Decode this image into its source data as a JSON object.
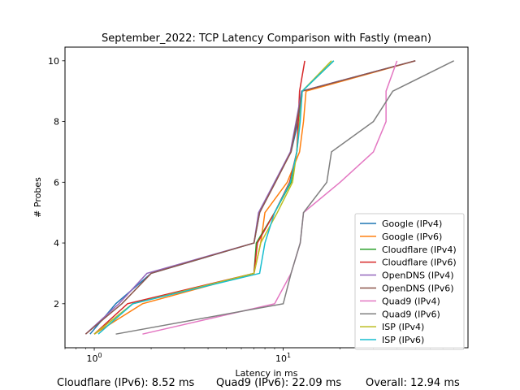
{
  "chart_data": {
    "type": "line",
    "title": "September_2022: TCP Latency Comparison with Fastly (mean)",
    "xlabel": "Latency in ms",
    "ylabel": "# Probes",
    "xscale": "log",
    "xlim": [
      0.7,
      95
    ],
    "ylim": [
      0.55,
      10.45
    ],
    "xticks": [
      {
        "value": 1,
        "label": "10^0"
      },
      {
        "value": 10,
        "label": "10^1"
      }
    ],
    "yticks": [
      2,
      4,
      6,
      8,
      10
    ],
    "legend_position": "lower-right",
    "series": [
      {
        "name": "Google (IPv4)",
        "color": "#1f77b4",
        "points": [
          [
            0.95,
            1
          ],
          [
            1.3,
            2
          ],
          [
            2.0,
            3
          ],
          [
            7.0,
            4
          ],
          [
            7.5,
            5
          ],
          [
            9.0,
            6
          ],
          [
            11.0,
            7
          ],
          [
            12.0,
            8
          ],
          [
            12.5,
            9
          ],
          [
            50,
            10
          ]
        ]
      },
      {
        "name": "Google (IPv6)",
        "color": "#ff7f0e",
        "points": [
          [
            1.0,
            1
          ],
          [
            1.8,
            2
          ],
          [
            7.0,
            3
          ],
          [
            7.6,
            4
          ],
          [
            8.0,
            5
          ],
          [
            10.5,
            6
          ],
          [
            12.2,
            7
          ],
          [
            12.8,
            8
          ],
          [
            13.2,
            9
          ],
          [
            50,
            10
          ]
        ]
      },
      {
        "name": "Cloudflare (IPv4)",
        "color": "#2ca02c",
        "points": [
          [
            1.0,
            1
          ],
          [
            1.6,
            2
          ],
          [
            7.0,
            3
          ],
          [
            7.2,
            4
          ],
          [
            9.0,
            5
          ],
          [
            11.0,
            6
          ],
          [
            11.8,
            7
          ],
          [
            12.2,
            8
          ],
          [
            12.6,
            9
          ],
          [
            18.5,
            10
          ]
        ]
      },
      {
        "name": "Cloudflare (IPv6)",
        "color": "#d62728",
        "points": [
          [
            1.0,
            1
          ],
          [
            1.5,
            2
          ],
          [
            7.0,
            3
          ],
          [
            7.3,
            4
          ],
          [
            9.0,
            5
          ],
          [
            10.8,
            6
          ],
          [
            11.8,
            7
          ],
          [
            12.0,
            8
          ],
          [
            12.2,
            9
          ],
          [
            13.0,
            10
          ]
        ]
      },
      {
        "name": "OpenDNS (IPv4)",
        "color": "#9467bd",
        "points": [
          [
            0.9,
            1
          ],
          [
            1.35,
            2
          ],
          [
            1.9,
            3
          ],
          [
            7.0,
            4
          ],
          [
            7.4,
            5
          ],
          [
            9.0,
            6
          ],
          [
            10.9,
            7
          ],
          [
            11.7,
            8
          ],
          [
            12.5,
            9
          ],
          [
            50,
            10
          ]
        ]
      },
      {
        "name": "OpenDNS (IPv6)",
        "color": "#8c564b",
        "points": [
          [
            0.9,
            1
          ],
          [
            1.4,
            2
          ],
          [
            2.0,
            3
          ],
          [
            7.0,
            4
          ],
          [
            7.5,
            5
          ],
          [
            9.1,
            6
          ],
          [
            11.0,
            7
          ],
          [
            11.8,
            8
          ],
          [
            12.6,
            9
          ],
          [
            50,
            10
          ]
        ]
      },
      {
        "name": "Quad9 (IPv4)",
        "color": "#e377c2",
        "points": [
          [
            1.8,
            1
          ],
          [
            9.0,
            2
          ],
          [
            11.0,
            3
          ],
          [
            12.3,
            4
          ],
          [
            12.8,
            5
          ],
          [
            20.0,
            6
          ],
          [
            30.0,
            7
          ],
          [
            35.0,
            8
          ],
          [
            35.0,
            9
          ],
          [
            40.0,
            10
          ]
        ]
      },
      {
        "name": "Quad9 (IPv6)",
        "color": "#7f7f7f",
        "points": [
          [
            1.3,
            1
          ],
          [
            10.0,
            2
          ],
          [
            11.0,
            3
          ],
          [
            12.3,
            4
          ],
          [
            12.8,
            5
          ],
          [
            17.0,
            6
          ],
          [
            18.0,
            7
          ],
          [
            30.0,
            8
          ],
          [
            38.0,
            9
          ],
          [
            80.0,
            10
          ]
        ]
      },
      {
        "name": "ISP (IPv4)",
        "color": "#bcbd22",
        "points": [
          [
            1.0,
            1
          ],
          [
            1.6,
            2
          ],
          [
            7.0,
            3
          ],
          [
            7.6,
            4
          ],
          [
            9.3,
            5
          ],
          [
            11.2,
            6
          ],
          [
            11.8,
            7
          ],
          [
            12.2,
            8
          ],
          [
            12.6,
            9
          ],
          [
            18.0,
            10
          ]
        ]
      },
      {
        "name": "ISP (IPv6)",
        "color": "#17becf",
        "points": [
          [
            1.05,
            1
          ],
          [
            1.6,
            2
          ],
          [
            7.5,
            3
          ],
          [
            8.0,
            4
          ],
          [
            9.0,
            5
          ],
          [
            10.9,
            6
          ],
          [
            11.8,
            7
          ],
          [
            12.3,
            8
          ],
          [
            12.6,
            9
          ],
          [
            18.5,
            10
          ]
        ]
      }
    ]
  },
  "footer": {
    "left": "Cloudflare (IPv6): 8.52 ms",
    "middle": "Quad9 (IPv6): 22.09 ms",
    "right": "Overall: 12.94 ms"
  }
}
